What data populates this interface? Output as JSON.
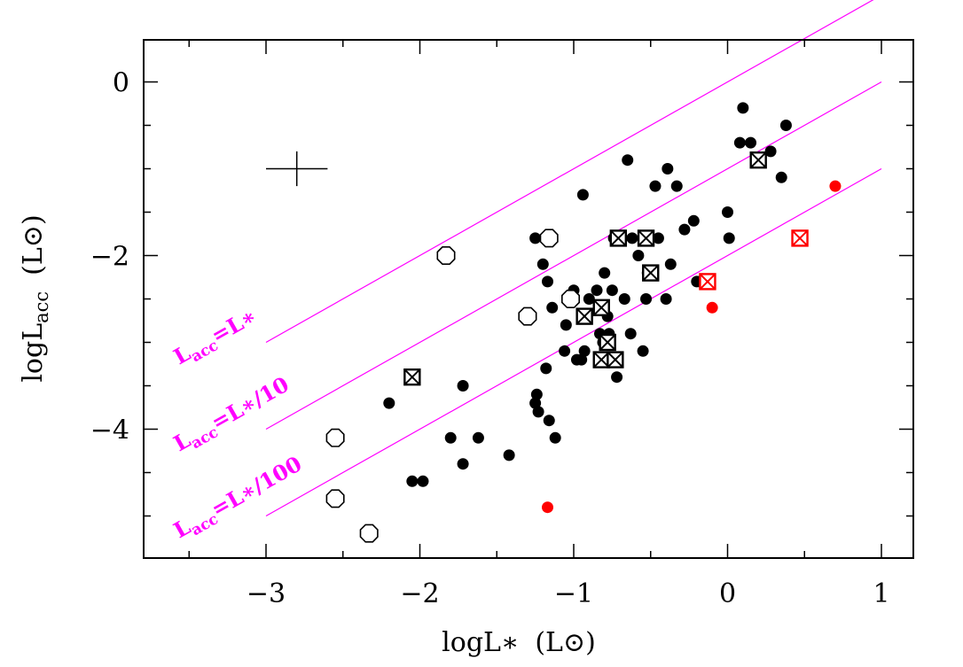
{
  "chart_data": {
    "type": "scatter",
    "title": "",
    "xlabel": {
      "main": "logL",
      "star": "∗",
      "unit": "(L",
      "sun": "⊙",
      "close": ")"
    },
    "ylabel": {
      "main": "logL",
      "sub": "acc",
      "unit": "(L",
      "sun": "⊙",
      "close": ")"
    },
    "xlim": [
      -3.8,
      1.2
    ],
    "ylim": [
      -5.45,
      0.5
    ],
    "x_ticks": [
      -3,
      -2,
      -1,
      0,
      1
    ],
    "x_tick_labels": [
      "−3",
      "−2",
      "−1",
      "0",
      "1"
    ],
    "y_ticks": [
      0,
      -2,
      -4
    ],
    "y_tick_labels": [
      "0",
      "−2",
      "−4"
    ],
    "grid": false,
    "colors": {
      "line": "#ff00ff",
      "highlight": "#ff0000",
      "marker": "#000000"
    },
    "reference_lines": [
      {
        "label_main": "L",
        "label_sub": "acc",
        "label_text": "=L∗",
        "x": [
          -3,
          1
        ],
        "y": [
          -3,
          1
        ]
      },
      {
        "label_main": "L",
        "label_sub": "acc",
        "label_text": "=L∗/10",
        "x": [
          -3,
          1
        ],
        "y": [
          -4,
          0
        ]
      },
      {
        "label_main": "L",
        "label_sub": "acc",
        "label_text": "=L∗/100",
        "x": [
          -3,
          1
        ],
        "y": [
          -5,
          -1
        ]
      }
    ],
    "error_bar": {
      "x": -2.8,
      "y": -1.0,
      "x_err": 0.2,
      "y_err": 0.2
    },
    "series": [
      {
        "marker": "filled-circle",
        "color": "#000000",
        "points": [
          [
            -2.2,
            -3.7
          ],
          [
            -2.05,
            -4.6
          ],
          [
            -1.98,
            -4.6
          ],
          [
            -1.8,
            -4.1
          ],
          [
            -1.72,
            -4.4
          ],
          [
            -1.72,
            -3.5
          ],
          [
            -1.62,
            -4.1
          ],
          [
            -1.42,
            -4.3
          ],
          [
            -1.25,
            -1.8
          ],
          [
            -1.25,
            -3.7
          ],
          [
            -1.24,
            -3.6
          ],
          [
            -1.23,
            -3.8
          ],
          [
            -1.2,
            -2.1
          ],
          [
            -1.18,
            -3.3
          ],
          [
            -1.17,
            -2.3
          ],
          [
            -1.16,
            -3.9
          ],
          [
            -1.14,
            -2.6
          ],
          [
            -1.12,
            -4.1
          ],
          [
            -1.06,
            -3.1
          ],
          [
            -1.05,
            -2.8
          ],
          [
            -1.0,
            -2.4
          ],
          [
            -0.98,
            -3.2
          ],
          [
            -0.95,
            -3.2
          ],
          [
            -0.94,
            -1.3
          ],
          [
            -0.93,
            -3.1
          ],
          [
            -0.9,
            -2.5
          ],
          [
            -0.85,
            -2.4
          ],
          [
            -0.83,
            -2.9
          ],
          [
            -0.81,
            -3.0
          ],
          [
            -0.8,
            -2.2
          ],
          [
            -0.78,
            -2.7
          ],
          [
            -0.77,
            -2.9
          ],
          [
            -0.75,
            -2.4
          ],
          [
            -0.74,
            -1.8
          ],
          [
            -0.72,
            -3.4
          ],
          [
            -0.69,
            -1.8
          ],
          [
            -0.67,
            -2.5
          ],
          [
            -0.65,
            -0.9
          ],
          [
            -0.63,
            -2.9
          ],
          [
            -0.62,
            -1.8
          ],
          [
            -0.58,
            -2.0
          ],
          [
            -0.55,
            -3.1
          ],
          [
            -0.53,
            -2.5
          ],
          [
            -0.52,
            -2.2
          ],
          [
            -0.47,
            -1.2
          ],
          [
            -0.45,
            -1.8
          ],
          [
            -0.4,
            -2.5
          ],
          [
            -0.39,
            -1.0
          ],
          [
            -0.37,
            -2.1
          ],
          [
            -0.33,
            -1.2
          ],
          [
            -0.28,
            -1.7
          ],
          [
            -0.22,
            -1.6
          ],
          [
            -0.18,
            -2.3
          ],
          [
            -0.2,
            -2.3
          ],
          [
            0.0,
            -1.5
          ],
          [
            0.01,
            -1.8
          ],
          [
            0.08,
            -0.7
          ],
          [
            0.1,
            -0.3
          ],
          [
            0.15,
            -0.7
          ],
          [
            0.28,
            -0.8
          ],
          [
            0.35,
            -1.1
          ],
          [
            0.38,
            -0.5
          ]
        ]
      },
      {
        "marker": "filled-circle",
        "color": "#ff0000",
        "points": [
          [
            -1.17,
            -4.9
          ],
          [
            -0.1,
            -2.6
          ],
          [
            0.7,
            -1.2
          ]
        ]
      },
      {
        "marker": "open-octagon",
        "color": "#000000",
        "points": [
          [
            -2.55,
            -4.1
          ],
          [
            -2.55,
            -4.8
          ],
          [
            -2.33,
            -5.2
          ],
          [
            -1.83,
            -2.0
          ],
          [
            -1.3,
            -2.7
          ],
          [
            -1.16,
            -1.8
          ],
          [
            -1.02,
            -2.5
          ]
        ]
      },
      {
        "marker": "boxed-x",
        "color": "#000000",
        "points": [
          [
            -2.05,
            -3.4
          ],
          [
            -0.93,
            -2.7
          ],
          [
            -0.82,
            -2.6
          ],
          [
            -0.82,
            -3.2
          ],
          [
            -0.78,
            -3.0
          ],
          [
            -0.73,
            -3.2
          ],
          [
            -0.71,
            -1.8
          ],
          [
            -0.53,
            -1.8
          ],
          [
            -0.5,
            -2.2
          ],
          [
            0.2,
            -0.9
          ]
        ]
      },
      {
        "marker": "boxed-x",
        "color": "#ff0000",
        "points": [
          [
            -0.13,
            -2.3
          ],
          [
            0.47,
            -1.8
          ]
        ]
      }
    ]
  }
}
